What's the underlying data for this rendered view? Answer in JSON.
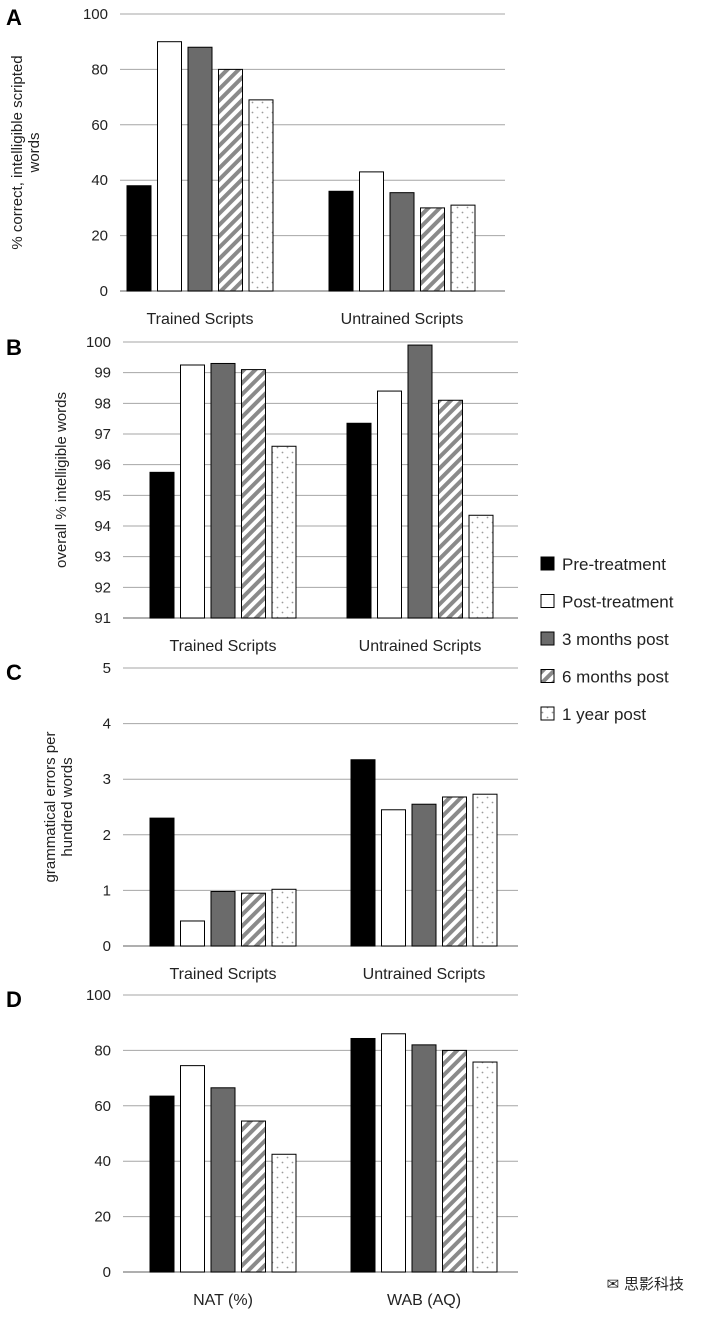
{
  "legend": {
    "entries": [
      "Pre-treatment",
      "Post-treatment",
      "3 months post",
      "6 months post",
      "1 year post"
    ],
    "placement": "right"
  },
  "watermark": {
    "text": "思影科技",
    "icon": "wechat-icon"
  },
  "styles": {
    "pre": {
      "fill": "#000000"
    },
    "post": {
      "fill": "#ffffff"
    },
    "m3": {
      "fill": "#6b6b6b"
    },
    "m6": {
      "fill": "#ffffff",
      "pattern": "diagonal-stripes",
      "stripe": "#8a8a8a"
    },
    "y1": {
      "fill": "#ffffff",
      "pattern": "dots",
      "dot": "#9a9a9a"
    }
  },
  "chart_data": [
    {
      "panel": "A",
      "type": "bar",
      "ylabel": "% correct, intelligible scripted words",
      "ylabel_lines": [
        "% correct, intelligible scripted",
        "words"
      ],
      "categories": [
        "Trained Scripts",
        "Untrained Scripts"
      ],
      "ylim": [
        0,
        100
      ],
      "yticks": [
        0,
        20,
        40,
        60,
        80,
        100
      ],
      "grid": true,
      "series": [
        {
          "name": "Pre-treatment",
          "values": [
            38,
            36
          ]
        },
        {
          "name": "Post-treatment",
          "values": [
            90,
            43
          ]
        },
        {
          "name": "3 months post",
          "values": [
            88,
            35.5
          ]
        },
        {
          "name": "6 months post",
          "values": [
            80,
            30
          ]
        },
        {
          "name": "1 year post",
          "values": [
            69,
            31
          ]
        }
      ]
    },
    {
      "panel": "B",
      "type": "bar",
      "ylabel": "overall % intelligible words",
      "ylabel_lines": [
        "overall % intelligible words"
      ],
      "categories": [
        "Trained Scripts",
        "Untrained Scripts"
      ],
      "ylim": [
        91,
        100
      ],
      "yticks": [
        91,
        92,
        93,
        94,
        95,
        96,
        97,
        98,
        99,
        100
      ],
      "grid": true,
      "series": [
        {
          "name": "Pre-treatment",
          "values": [
            95.75,
            97.35
          ]
        },
        {
          "name": "Post-treatment",
          "values": [
            99.25,
            98.4
          ]
        },
        {
          "name": "3 months post",
          "values": [
            99.3,
            99.9
          ]
        },
        {
          "name": "6 months post",
          "values": [
            99.1,
            98.1
          ]
        },
        {
          "name": "1 year post",
          "values": [
            96.6,
            94.35
          ]
        }
      ]
    },
    {
      "panel": "C",
      "type": "bar",
      "ylabel": "grammatical errors per hundred words",
      "ylabel_lines": [
        "grammatical errors per",
        "hundred words"
      ],
      "categories": [
        "Trained Scripts",
        "Untrained Scripts"
      ],
      "ylim": [
        0,
        5
      ],
      "yticks": [
        0,
        1,
        2,
        3,
        4,
        5
      ],
      "grid": true,
      "series": [
        {
          "name": "Pre-treatment",
          "values": [
            2.3,
            3.35
          ]
        },
        {
          "name": "Post-treatment",
          "values": [
            0.45,
            2.45
          ]
        },
        {
          "name": "3 months post",
          "values": [
            0.98,
            2.55
          ]
        },
        {
          "name": "6 months post",
          "values": [
            0.95,
            2.68
          ]
        },
        {
          "name": "1 year post",
          "values": [
            1.02,
            2.73
          ]
        }
      ]
    },
    {
      "panel": "D",
      "type": "bar",
      "ylabel": "",
      "ylabel_lines": [],
      "categories": [
        "NAT (%)",
        "WAB (AQ)"
      ],
      "ylim": [
        0,
        100
      ],
      "yticks": [
        0,
        20,
        40,
        60,
        80,
        100
      ],
      "grid": true,
      "series": [
        {
          "name": "Pre-treatment",
          "values": [
            63.5,
            84.3
          ]
        },
        {
          "name": "Post-treatment",
          "values": [
            74.5,
            86
          ]
        },
        {
          "name": "3 months post",
          "values": [
            66.5,
            82
          ]
        },
        {
          "name": "6 months post",
          "values": [
            54.5,
            80
          ]
        },
        {
          "name": "1 year post",
          "values": [
            42.5,
            75.8
          ]
        }
      ]
    }
  ]
}
